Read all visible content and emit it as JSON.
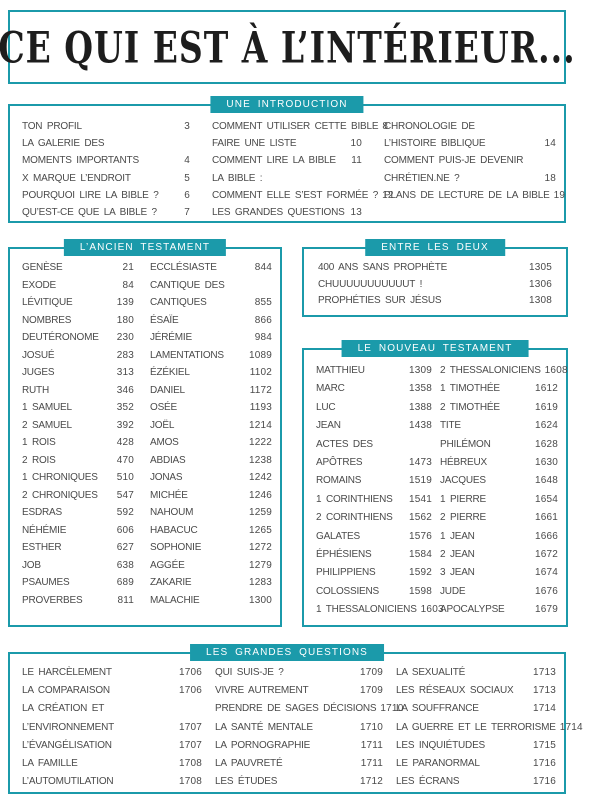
{
  "page": {
    "title": "CE QUI EST À L’INTÉRIEUR...",
    "accent_color": "#1b9aaa",
    "text_color": "#4a4a4a"
  },
  "sections": {
    "introduction": {
      "header": "UNE INTRODUCTION",
      "columns": [
        [
          {
            "label": "TON PROFIL",
            "page": "3"
          },
          {
            "label": "LA GALERIE DES",
            "page": ""
          },
          {
            "label": "MOMENTS IMPORTANTS",
            "page": "4"
          },
          {
            "label": "X MARQUE L’ENDROIT",
            "page": "5"
          },
          {
            "label": "POURQUOI LIRE LA BIBLE ?",
            "page": "6"
          },
          {
            "label": "QU’EST-CE QUE LA BIBLE ?",
            "page": "7"
          }
        ],
        [
          {
            "label": "COMMENT UTILISER CETTE BIBLE",
            "page": "8"
          },
          {
            "label": "FAIRE UNE LISTE",
            "page": "10"
          },
          {
            "label": "COMMENT LIRE LA BIBLE",
            "page": "11"
          },
          {
            "label": "LA BIBLE :",
            "page": ""
          },
          {
            "label": "COMMENT ELLE S’EST FORMÉE ?",
            "page": "12"
          },
          {
            "label": "LES GRANDES QUESTIONS",
            "page": "13"
          }
        ],
        [
          {
            "label": "CHRONOLOGIE DE",
            "page": ""
          },
          {
            "label": "L’HISTOIRE BIBLIQUE",
            "page": "14"
          },
          {
            "label": "COMMENT PUIS-JE DEVENIR",
            "page": ""
          },
          {
            "label": "CHRÉTIEN.NE ?",
            "page": "18"
          },
          {
            "label": "PLANS DE LECTURE DE LA BIBLE",
            "page": "19"
          }
        ]
      ]
    },
    "ancien_testament": {
      "header": "L’ANCIEN TESTAMENT",
      "columns": [
        [
          {
            "label": "GENÈSE",
            "page": "21"
          },
          {
            "label": "EXODE",
            "page": "84"
          },
          {
            "label": "LÉVITIQUE",
            "page": "139"
          },
          {
            "label": "NOMBRES",
            "page": "180"
          },
          {
            "label": "DEUTÉRONOME",
            "page": "230"
          },
          {
            "label": "JOSUÉ",
            "page": "283"
          },
          {
            "label": "JUGES",
            "page": "313"
          },
          {
            "label": "RUTH",
            "page": "346"
          },
          {
            "label": "1 SAMUEL",
            "page": "352"
          },
          {
            "label": "2 SAMUEL",
            "page": "392"
          },
          {
            "label": "1 ROIS",
            "page": "428"
          },
          {
            "label": "2 ROIS",
            "page": "470"
          },
          {
            "label": "1 CHRONIQUES",
            "page": "510"
          },
          {
            "label": "2 CHRONIQUES",
            "page": "547"
          },
          {
            "label": "ESDRAS",
            "page": "592"
          },
          {
            "label": "NÉHÉMIE",
            "page": "606"
          },
          {
            "label": "ESTHER",
            "page": "627"
          },
          {
            "label": "JOB",
            "page": "638"
          },
          {
            "label": "PSAUMES",
            "page": "689"
          },
          {
            "label": "PROVERBES",
            "page": "811"
          }
        ],
        [
          {
            "label": "ECCLÉSIASTE",
            "page": "844"
          },
          {
            "label": "CANTIQUE DES",
            "page": ""
          },
          {
            "label": "CANTIQUES",
            "page": "855"
          },
          {
            "label": "ÉSAÏE",
            "page": "866"
          },
          {
            "label": "JÉRÉMIE",
            "page": "984"
          },
          {
            "label": "LAMENTATIONS",
            "page": "1089"
          },
          {
            "label": "ÉZÉKIEL",
            "page": "1102"
          },
          {
            "label": "DANIEL",
            "page": "1172"
          },
          {
            "label": "OSÉE",
            "page": "1193"
          },
          {
            "label": "JOËL",
            "page": "1214"
          },
          {
            "label": "AMOS",
            "page": "1222"
          },
          {
            "label": "ABDIAS",
            "page": "1238"
          },
          {
            "label": "JONAS",
            "page": "1242"
          },
          {
            "label": "MICHÉE",
            "page": "1246"
          },
          {
            "label": "NAHOUM",
            "page": "1259"
          },
          {
            "label": "HABACUC",
            "page": "1265"
          },
          {
            "label": "SOPHONIE",
            "page": "1272"
          },
          {
            "label": "AGGÉE",
            "page": "1279"
          },
          {
            "label": "ZAKARIE",
            "page": "1283"
          },
          {
            "label": "MALACHIE",
            "page": "1300"
          }
        ]
      ]
    },
    "entre_les_deux": {
      "header": "ENTRE LES DEUX",
      "columns": [
        [
          {
            "label": "400 ANS SANS PROPHÈTE",
            "page": "1305"
          },
          {
            "label": "CHUUUUUUUUUUUT !",
            "page": "1306"
          },
          {
            "label": "PROPHÉTIES SUR JÉSUS",
            "page": "1308"
          }
        ]
      ]
    },
    "nouveau_testament": {
      "header": "LE NOUVEAU TESTAMENT",
      "columns": [
        [
          {
            "label": "MATTHIEU",
            "page": "1309"
          },
          {
            "label": "MARC",
            "page": "1358"
          },
          {
            "label": "LUC",
            "page": "1388"
          },
          {
            "label": "JEAN",
            "page": "1438"
          },
          {
            "label": "ACTES DES",
            "page": ""
          },
          {
            "label": "APÔTRES",
            "page": "1473"
          },
          {
            "label": "ROMAINS",
            "page": "1519"
          },
          {
            "label": "1 CORINTHIENS",
            "page": "1541"
          },
          {
            "label": "2 CORINTHIENS",
            "page": "1562"
          },
          {
            "label": "GALATES",
            "page": "1576"
          },
          {
            "label": "ÉPHÉSIENS",
            "page": "1584"
          },
          {
            "label": "PHILIPPIENS",
            "page": "1592"
          },
          {
            "label": "COLOSSIENS",
            "page": "1598"
          },
          {
            "label": "1 THESSALONICIENS",
            "page": "1603"
          }
        ],
        [
          {
            "label": "2 THESSALONICIENS",
            "page": "1608"
          },
          {
            "label": "1 TIMOTHÉE",
            "page": "1612"
          },
          {
            "label": "2 TIMOTHÉE",
            "page": "1619"
          },
          {
            "label": "TITE",
            "page": "1624"
          },
          {
            "label": "PHILÉMON",
            "page": "1628"
          },
          {
            "label": "HÉBREUX",
            "page": "1630"
          },
          {
            "label": "JACQUES",
            "page": "1648"
          },
          {
            "label": "1 PIERRE",
            "page": "1654"
          },
          {
            "label": "2 PIERRE",
            "page": "1661"
          },
          {
            "label": "1 JEAN",
            "page": "1666"
          },
          {
            "label": "2 JEAN",
            "page": "1672"
          },
          {
            "label": "3 JEAN",
            "page": "1674"
          },
          {
            "label": "JUDE",
            "page": "1676"
          },
          {
            "label": "APOCALYPSE",
            "page": "1679"
          }
        ]
      ]
    },
    "grandes_questions": {
      "header": "LES GRANDES QUESTIONS",
      "columns": [
        [
          {
            "label": "LE HARCÈLEMENT",
            "page": "1706"
          },
          {
            "label": "LA COMPARAISON",
            "page": "1706"
          },
          {
            "label": "LA CRÉATION ET",
            "page": ""
          },
          {
            "label": "L’ENVIRONNEMENT",
            "page": "1707"
          },
          {
            "label": "L’ÉVANGÉLISATION",
            "page": "1707"
          },
          {
            "label": "LA FAMILLE",
            "page": "1708"
          },
          {
            "label": "L’AUTOMUTILATION",
            "page": "1708"
          }
        ],
        [
          {
            "label": "QUI SUIS-JE ?",
            "page": "1709"
          },
          {
            "label": "VIVRE AUTREMENT",
            "page": "1709"
          },
          {
            "label": "PRENDRE DE SAGES DÉCISIONS",
            "page": "1710"
          },
          {
            "label": "LA SANTÉ MENTALE",
            "page": "1710"
          },
          {
            "label": "LA PORNOGRAPHIE",
            "page": "1711"
          },
          {
            "label": "LA PAUVRETÉ",
            "page": "1711"
          },
          {
            "label": "LES ÉTUDES",
            "page": "1712"
          }
        ],
        [
          {
            "label": "LA SEXUALITÉ",
            "page": "1713"
          },
          {
            "label": "LES RÉSEAUX SOCIAUX",
            "page": "1713"
          },
          {
            "label": "LA SOUFFRANCE",
            "page": "1714"
          },
          {
            "label": "LA GUERRE ET LE TERRORISME",
            "page": "1714"
          },
          {
            "label": "LES INQUIÉTUDES",
            "page": "1715"
          },
          {
            "label": "LE PARANORMAL",
            "page": "1716"
          },
          {
            "label": "LES ÉCRANS",
            "page": "1716"
          }
        ]
      ]
    }
  }
}
